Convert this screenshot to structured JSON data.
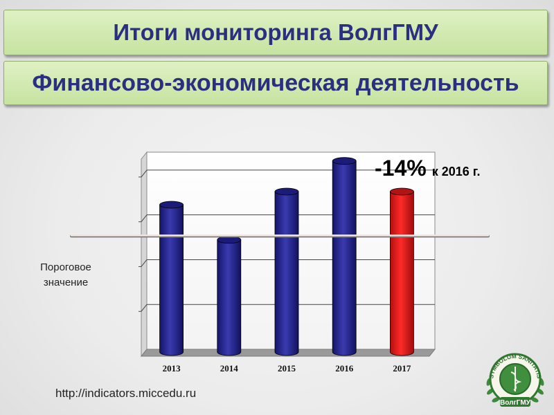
{
  "header": {
    "title": "Итоги мониторинга ВолгГМУ",
    "subtitle": "Финансово-экономическая деятельность"
  },
  "chart_data": {
    "type": "bar",
    "categories": [
      "2013",
      "2014",
      "2015",
      "2016",
      "2017"
    ],
    "values": [
      3.3,
      2.5,
      3.6,
      4.3,
      3.6
    ],
    "ylim": [
      0,
      4.5
    ],
    "grid": true,
    "threshold": {
      "value": 2.6,
      "label": "Пороговое значение"
    },
    "colors": {
      "default": "#2b2b8f",
      "highlight": "#e21b1b"
    },
    "highlight_index": 4,
    "annotation": {
      "big": "-14%",
      "small": "к 2016 г."
    }
  },
  "footer": {
    "url": "http://indicators.miccedu.ru"
  },
  "logo": {
    "top_text": "SYMBOLUM SANITATIS",
    "bottom_text": "ВолгГМУ"
  }
}
